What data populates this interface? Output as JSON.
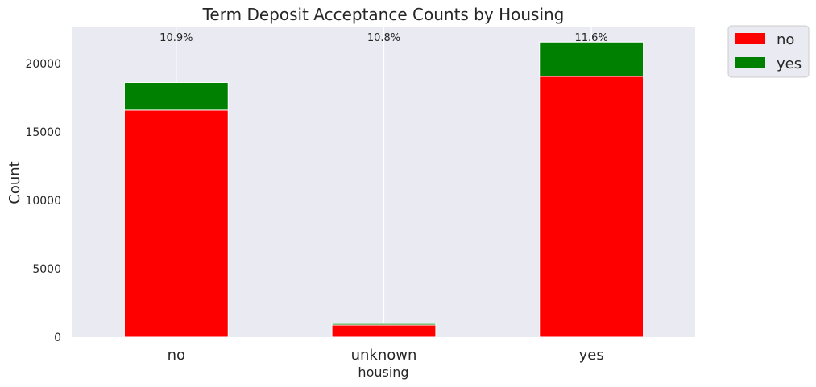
{
  "chart_data": {
    "type": "bar",
    "stacked": true,
    "title": "Term Deposit Acceptance Counts by Housing",
    "xlabel": "housing",
    "ylabel": "Count",
    "categories": [
      "no",
      "unknown",
      "yes"
    ],
    "series": [
      {
        "name": "no",
        "values": [
          16596,
          883,
          19069
        ],
        "color": "#ff0000"
      },
      {
        "name": "yes",
        "values": [
          2026,
          107,
          2507
        ],
        "color": "#008000"
      }
    ],
    "percent_labels": [
      "10.9%",
      "10.8%",
      "11.6%"
    ],
    "yticks": [
      0,
      5000,
      10000,
      15000,
      20000
    ],
    "ylim": [
      0,
      22650
    ],
    "grid": true,
    "legend_position": "outside-top-right",
    "background_color": "#eaeaf2"
  }
}
